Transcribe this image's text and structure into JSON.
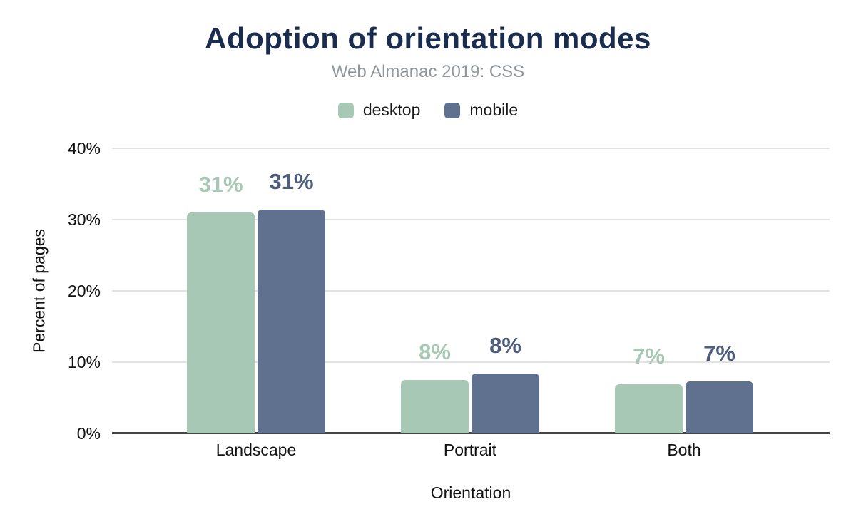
{
  "chart_data": {
    "type": "bar",
    "title": "Adoption of orientation modes",
    "subtitle": "Web Almanac 2019: CSS",
    "xlabel": "Orientation",
    "ylabel": "Percent of pages",
    "categories": [
      "Landscape",
      "Portrait",
      "Both"
    ],
    "series": [
      {
        "name": "desktop",
        "color": "#a6c8b5",
        "label_color": "#a6c8b5",
        "values": [
          31.0,
          7.5,
          6.9
        ],
        "labels": [
          "31%",
          "8%",
          "7%"
        ]
      },
      {
        "name": "mobile",
        "color": "#5f718e",
        "label_color": "#4d5d7d",
        "values": [
          31.4,
          8.4,
          7.3
        ],
        "labels": [
          "31%",
          "8%",
          "7%"
        ]
      }
    ],
    "ylim": [
      0,
      40
    ],
    "yticks": [
      {
        "value": 0,
        "label": "0%"
      },
      {
        "value": 10,
        "label": "10%"
      },
      {
        "value": 20,
        "label": "20%"
      },
      {
        "value": 30,
        "label": "30%"
      },
      {
        "value": 40,
        "label": "40%"
      }
    ],
    "grid": true,
    "legend_position": "top"
  },
  "colors": {
    "title": "#1b2d4f",
    "subtitle": "#8f969c",
    "gridline": "#e2e2e2",
    "axis_line": "#454545",
    "tick_text": "#111111"
  }
}
